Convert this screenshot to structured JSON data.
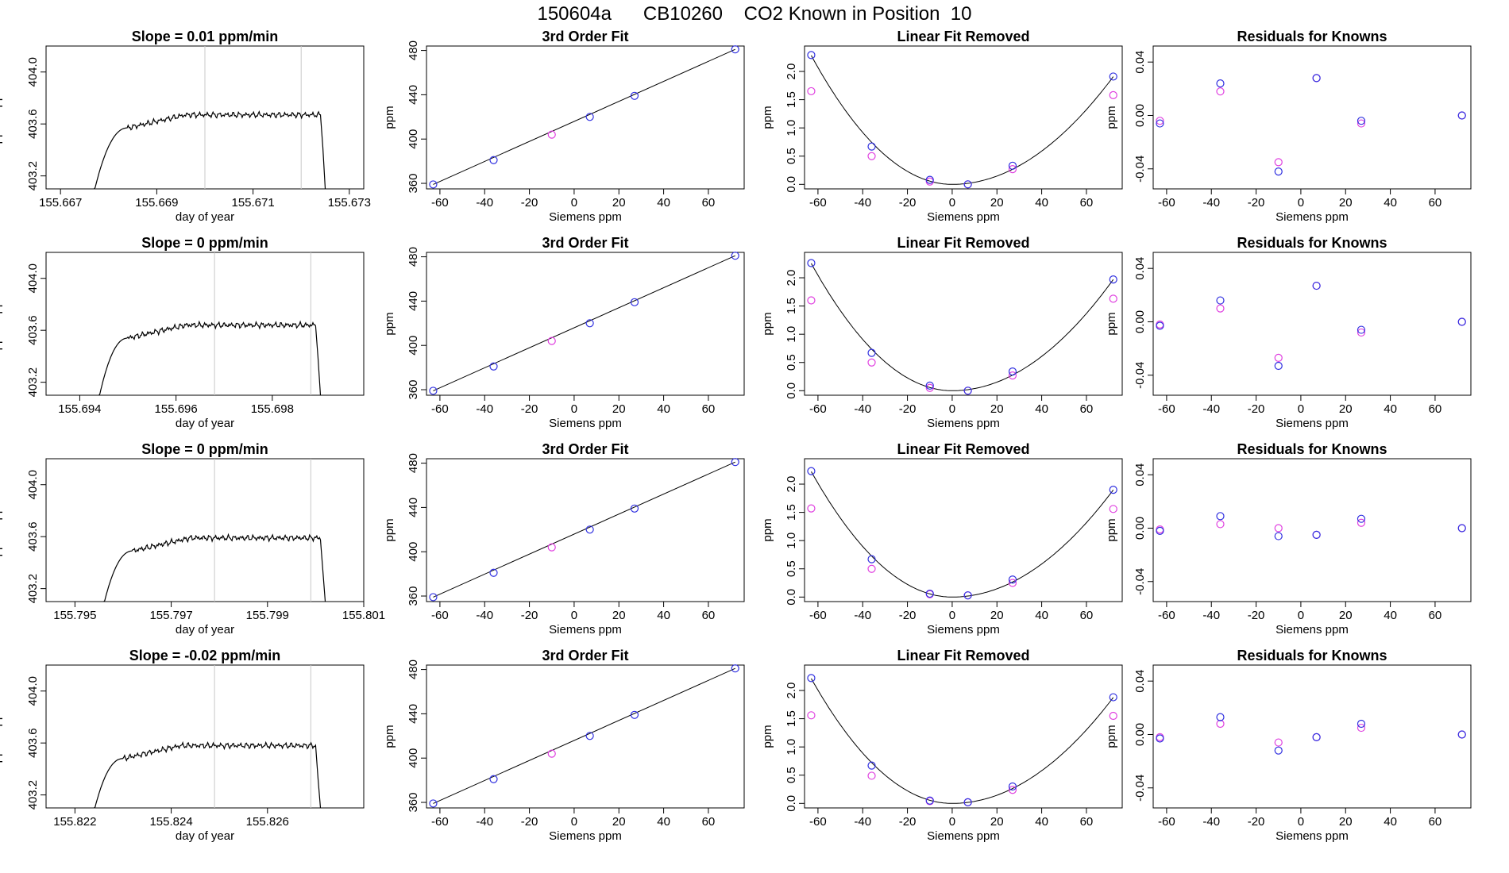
{
  "page": {
    "title": "150604a      CB10260    CO2 Known in Position  10"
  },
  "colors": {
    "axes": "#000000",
    "trace": "#000000",
    "vline": "#c8c8c8",
    "blue_points": "#3030e0",
    "magenta_points": "#e040e0"
  },
  "panel_text": {
    "fit_title": "3rd Order Fit",
    "lin_title": "Linear Fit Removed",
    "res_title": "Residuals for Knowns",
    "siemens_label": "Siemens ppm",
    "ppm_label": "ppm",
    "time_xlabel": "day of year",
    "time_ylabel": "approx. ppm"
  },
  "chart_data": [
    {
      "row": 1,
      "time_series": {
        "type": "line",
        "title": "Slope =  0.01  ppm/min",
        "xlabel": "day of year",
        "ylabel": "approx. ppm",
        "xlim": [
          155.6667,
          155.6733
        ],
        "ylim": [
          403.1,
          404.2
        ],
        "xticks": [
          "155.667",
          "155.669",
          "155.671",
          "155.673"
        ],
        "xtick_values": [
          155.667,
          155.669,
          155.671,
          155.673
        ],
        "yticks": [
          "403.2",
          "403.6",
          "404.0"
        ],
        "ytick_values": [
          403.2,
          403.6,
          404.0
        ],
        "t_start": 155.6677,
        "t_rise": 155.6684,
        "t_end": 155.6724,
        "t_fall": 155.6725,
        "plateau": 403.67,
        "vlines": [
          155.67,
          155.672
        ]
      },
      "fit": {
        "type": "scatter",
        "title": "3rd Order Fit",
        "xlabel": "Siemens ppm",
        "ylabel": "ppm",
        "xlim": [
          -66,
          76
        ],
        "ylim": [
          355,
          484
        ],
        "xticks": [
          -60,
          -40,
          -20,
          0,
          20,
          40,
          60
        ],
        "yticks": [
          360,
          400,
          440,
          480
        ],
        "x": [
          -63,
          -36,
          -10,
          7,
          27,
          72
        ],
        "y": [
          359,
          381,
          404,
          420,
          439,
          481
        ],
        "blue_x": [
          -63,
          -36,
          7,
          27,
          72
        ],
        "blue_y": [
          359,
          381,
          420,
          439,
          481
        ],
        "magenta_x": [
          -10
        ],
        "magenta_y": [
          404
        ]
      },
      "lin_removed": {
        "type": "scatter",
        "title": "Linear Fit Removed",
        "xlabel": "Siemens ppm",
        "ylabel": "ppm",
        "xlim": [
          -66,
          76
        ],
        "ylim": [
          -0.08,
          2.45
        ],
        "xticks": [
          -60,
          -40,
          -20,
          0,
          20,
          40,
          60
        ],
        "yticks": [
          0.0,
          0.5,
          1.0,
          1.5,
          2.0
        ],
        "ytick_labels": [
          "0.0",
          "0.5",
          "1.0",
          "1.5",
          "2.0"
        ],
        "x": [
          -63,
          -36,
          -10,
          7,
          27,
          72
        ],
        "blue": [
          2.29,
          0.67,
          0.08,
          0.0,
          0.33,
          1.91
        ],
        "magenta": [
          1.65,
          0.5,
          0.05,
          0.0,
          0.27,
          1.58
        ],
        "curve": {
          "vertex": 0,
          "a_left": 0.000575,
          "a_right": 0.000368
        }
      },
      "residuals": {
        "type": "scatter",
        "title": "Residuals for Knowns",
        "xlabel": "Siemens ppm",
        "ylabel": "ppm",
        "xlim": [
          -66,
          76
        ],
        "ylim": [
          -0.055,
          0.052
        ],
        "xticks": [
          -60,
          -40,
          -20,
          0,
          20,
          40,
          60
        ],
        "yticks": [
          -0.04,
          0.0,
          0.04
        ],
        "ytick_labels": [
          "-0.04",
          "0.00",
          "0.04"
        ],
        "x": [
          -63,
          -36,
          -10,
          7,
          27,
          72
        ],
        "blue": [
          -0.006,
          0.024,
          -0.042,
          0.028,
          -0.004,
          0.0
        ],
        "magenta": [
          -0.004,
          0.018,
          -0.035,
          0.028,
          -0.006,
          0.0
        ]
      }
    },
    {
      "row": 2,
      "time_series": {
        "type": "line",
        "title": "Slope =  0  ppm/min",
        "xlabel": "day of year",
        "ylabel": "approx. ppm",
        "xlim": [
          155.6933,
          155.6999
        ],
        "ylim": [
          403.1,
          404.2
        ],
        "xticks": [
          "155.694",
          "155.696",
          "155.698"
        ],
        "xtick_values": [
          155.694,
          155.696,
          155.698
        ],
        "yticks": [
          "403.2",
          "403.6",
          "404.0"
        ],
        "ytick_values": [
          403.2,
          403.6,
          404.0
        ],
        "t_start": 155.6944,
        "t_rise": 155.695,
        "t_end": 155.6989,
        "t_fall": 155.699,
        "plateau": 403.64,
        "vlines": [
          155.6968,
          155.6988
        ]
      },
      "fit": {
        "type": "scatter",
        "title": "3rd Order Fit",
        "xlabel": "Siemens ppm",
        "ylabel": "ppm",
        "xlim": [
          -66,
          76
        ],
        "ylim": [
          355,
          484
        ],
        "xticks": [
          -60,
          -40,
          -20,
          0,
          20,
          40,
          60
        ],
        "yticks": [
          360,
          400,
          440,
          480
        ],
        "x": [
          -63,
          -36,
          -10,
          7,
          27,
          72
        ],
        "y": [
          359,
          381,
          404,
          420,
          439,
          481
        ],
        "blue_x": [
          -63,
          -36,
          7,
          27,
          72
        ],
        "blue_y": [
          359,
          381,
          420,
          439,
          481
        ],
        "magenta_x": [
          -10
        ],
        "magenta_y": [
          404
        ]
      },
      "lin_removed": {
        "type": "scatter",
        "title": "Linear Fit Removed",
        "xlabel": "Siemens ppm",
        "ylabel": "ppm",
        "xlim": [
          -66,
          76
        ],
        "ylim": [
          -0.08,
          2.45
        ],
        "xticks": [
          -60,
          -40,
          -20,
          0,
          20,
          40,
          60
        ],
        "yticks": [
          0.0,
          0.5,
          1.0,
          1.5,
          2.0
        ],
        "ytick_labels": [
          "0.0",
          "0.5",
          "1.0",
          "1.5",
          "2.0"
        ],
        "x": [
          -63,
          -36,
          -10,
          7,
          27,
          72
        ],
        "blue": [
          2.26,
          0.67,
          0.09,
          0.0,
          0.34,
          1.97
        ],
        "magenta": [
          1.6,
          0.5,
          0.05,
          0.0,
          0.27,
          1.63
        ],
        "curve": {
          "vertex": 0,
          "a_left": 0.000568,
          "a_right": 0.00038
        }
      },
      "residuals": {
        "type": "scatter",
        "title": "Residuals for Knowns",
        "xlabel": "Siemens ppm",
        "ylabel": "ppm",
        "xlim": [
          -66,
          76
        ],
        "ylim": [
          -0.055,
          0.052
        ],
        "xticks": [
          -60,
          -40,
          -20,
          0,
          20,
          40,
          60
        ],
        "yticks": [
          -0.04,
          0.0,
          0.04
        ],
        "ytick_labels": [
          "-0.04",
          "0.00",
          "0.04"
        ],
        "x": [
          -63,
          -36,
          -10,
          7,
          27,
          72
        ],
        "blue": [
          -0.003,
          0.016,
          -0.033,
          0.027,
          -0.006,
          0.0
        ],
        "magenta": [
          -0.002,
          0.01,
          -0.027,
          0.027,
          -0.008,
          0.0
        ]
      }
    },
    {
      "row": 3,
      "time_series": {
        "type": "line",
        "title": "Slope =  0  ppm/min",
        "xlabel": "day of year",
        "ylabel": "approx. ppm",
        "xlim": [
          155.7944,
          155.801
        ],
        "ylim": [
          403.1,
          404.2
        ],
        "xticks": [
          "155.795",
          "155.797",
          "155.799",
          "155.801"
        ],
        "xtick_values": [
          155.795,
          155.797,
          155.799,
          155.801
        ],
        "yticks": [
          "403.2",
          "403.6",
          "404.0"
        ],
        "ytick_values": [
          403.2,
          403.6,
          404.0
        ],
        "t_start": 155.7956,
        "t_rise": 155.7962,
        "t_end": 155.8001,
        "t_fall": 155.8002,
        "plateau": 403.59,
        "vlines": [
          155.7979,
          155.7999
        ]
      },
      "fit": {
        "type": "scatter",
        "title": "3rd Order Fit",
        "xlabel": "Siemens ppm",
        "ylabel": "ppm",
        "xlim": [
          -66,
          76
        ],
        "ylim": [
          355,
          484
        ],
        "xticks": [
          -60,
          -40,
          -20,
          0,
          20,
          40,
          60
        ],
        "yticks": [
          360,
          400,
          440,
          480
        ],
        "x": [
          -63,
          -36,
          -10,
          7,
          27,
          72
        ],
        "y": [
          359,
          381,
          404,
          420,
          439,
          481
        ],
        "blue_x": [
          -63,
          -36,
          7,
          27,
          72
        ],
        "blue_y": [
          359,
          381,
          420,
          439,
          481
        ],
        "magenta_x": [
          -10
        ],
        "magenta_y": [
          404
        ]
      },
      "lin_removed": {
        "type": "scatter",
        "title": "Linear Fit Removed",
        "xlabel": "Siemens ppm",
        "ylabel": "ppm",
        "xlim": [
          -66,
          76
        ],
        "ylim": [
          -0.08,
          2.45
        ],
        "xticks": [
          -60,
          -40,
          -20,
          0,
          20,
          40,
          60
        ],
        "yticks": [
          0.0,
          0.5,
          1.0,
          1.5,
          2.0
        ],
        "ytick_labels": [
          "0.0",
          "0.5",
          "1.0",
          "1.5",
          "2.0"
        ],
        "x": [
          -63,
          -36,
          -10,
          7,
          27,
          72
        ],
        "blue": [
          2.23,
          0.67,
          0.06,
          0.03,
          0.31,
          1.9
        ],
        "magenta": [
          1.57,
          0.5,
          0.05,
          0.03,
          0.25,
          1.56
        ],
        "curve": {
          "vertex": 0,
          "a_left": 0.00056,
          "a_right": 0.000366
        }
      },
      "residuals": {
        "type": "scatter",
        "title": "Residuals for Knowns",
        "xlabel": "Siemens ppm",
        "ylabel": "ppm",
        "xlim": [
          -66,
          76
        ],
        "ylim": [
          -0.055,
          0.052
        ],
        "xticks": [
          -60,
          -40,
          -20,
          0,
          20,
          40,
          60
        ],
        "yticks": [
          -0.04,
          0.0,
          0.04
        ],
        "ytick_labels": [
          "-0.04",
          "0.00",
          "0.04"
        ],
        "x": [
          -63,
          -36,
          -10,
          7,
          27,
          72
        ],
        "blue": [
          -0.002,
          0.009,
          -0.006,
          -0.005,
          0.007,
          0.0
        ],
        "magenta": [
          -0.001,
          0.003,
          0.0,
          -0.005,
          0.004,
          0.0
        ]
      }
    },
    {
      "row": 4,
      "time_series": {
        "type": "line",
        "title": "Slope =  -0.02  ppm/min",
        "xlabel": "day of year",
        "ylabel": "approx. ppm",
        "xlim": [
          155.8214,
          155.828
        ],
        "ylim": [
          403.1,
          404.2
        ],
        "xticks": [
          "155.822",
          "155.824",
          "155.826"
        ],
        "xtick_values": [
          155.822,
          155.824,
          155.826
        ],
        "yticks": [
          "403.2",
          "403.6",
          "404.0"
        ],
        "ytick_values": [
          403.2,
          403.6,
          404.0
        ],
        "t_start": 155.8224,
        "t_rise": 155.823,
        "t_end": 155.827,
        "t_fall": 155.8271,
        "plateau": 403.58,
        "vlines": [
          155.8249,
          155.8269
        ]
      },
      "fit": {
        "type": "scatter",
        "title": "3rd Order Fit",
        "xlabel": "Siemens ppm",
        "ylabel": "ppm",
        "xlim": [
          -66,
          76
        ],
        "ylim": [
          355,
          484
        ],
        "xticks": [
          -60,
          -40,
          -20,
          0,
          20,
          40,
          60
        ],
        "yticks": [
          360,
          400,
          440,
          480
        ],
        "x": [
          -63,
          -36,
          -10,
          7,
          27,
          72
        ],
        "y": [
          359,
          381,
          404,
          420,
          439,
          481
        ],
        "blue_x": [
          -63,
          -36,
          7,
          27,
          72
        ],
        "blue_y": [
          359,
          381,
          420,
          439,
          481
        ],
        "magenta_x": [
          -10
        ],
        "magenta_y": [
          404
        ]
      },
      "lin_removed": {
        "type": "scatter",
        "title": "Linear Fit Removed",
        "xlabel": "Siemens ppm",
        "ylabel": "ppm",
        "xlim": [
          -66,
          76
        ],
        "ylim": [
          -0.08,
          2.45
        ],
        "xticks": [
          -60,
          -40,
          -20,
          0,
          20,
          40,
          60
        ],
        "yticks": [
          0.0,
          0.5,
          1.0,
          1.5,
          2.0
        ],
        "ytick_labels": [
          "0.0",
          "0.5",
          "1.0",
          "1.5",
          "2.0"
        ],
        "x": [
          -63,
          -36,
          -10,
          7,
          27,
          72
        ],
        "blue": [
          2.22,
          0.67,
          0.05,
          0.02,
          0.3,
          1.88
        ],
        "magenta": [
          1.56,
          0.49,
          0.04,
          0.02,
          0.24,
          1.55
        ],
        "curve": {
          "vertex": 0,
          "a_left": 0.000557,
          "a_right": 0.000362
        }
      },
      "residuals": {
        "type": "scatter",
        "title": "Residuals for Knowns",
        "xlabel": "Siemens ppm",
        "ylabel": "ppm",
        "xlim": [
          -66,
          76
        ],
        "ylim": [
          -0.055,
          0.052
        ],
        "xticks": [
          -60,
          -40,
          -20,
          0,
          20,
          40,
          60
        ],
        "yticks": [
          -0.04,
          0.0,
          0.04
        ],
        "ytick_labels": [
          "-0.04",
          "0.00",
          "0.04"
        ],
        "x": [
          -63,
          -36,
          -10,
          7,
          27,
          72
        ],
        "blue": [
          -0.003,
          0.013,
          -0.012,
          -0.002,
          0.008,
          0.0
        ],
        "magenta": [
          -0.002,
          0.008,
          -0.006,
          -0.002,
          0.005,
          0.0
        ]
      }
    }
  ]
}
